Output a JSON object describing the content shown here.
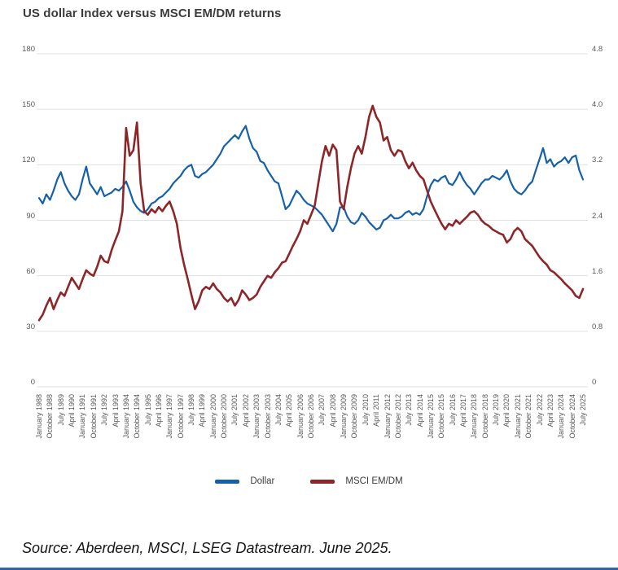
{
  "title": "US dollar Index versus MSCI EM/DM returns",
  "source": "Source: Aberdeen, MSCI, LSEG Datastream. June 2025.",
  "colors": {
    "dollar_line": "#1560a8",
    "msci_line": "#8c2629",
    "gridline": "#e0e0e0",
    "axis_text": "#595959",
    "title_text": "#3b3b3b",
    "bottom_rule": "#2f64ad"
  },
  "legend": [
    {
      "label": "Dollar",
      "color": "#1560a8"
    },
    {
      "label": "MSCI EM/DM",
      "color": "#8c2629"
    }
  ],
  "chart_data": {
    "type": "line",
    "title": "US dollar Index versus MSCI EM/DM returns",
    "grid": true,
    "legend_position": "bottom",
    "x_start": 1988.0,
    "x_step": 0.25,
    "x_end": 2025.5,
    "x_tick_labels": [
      "January 1988",
      "October 1988",
      "July 1989",
      "April 1990",
      "January 1991",
      "October 1991",
      "July 1992",
      "April 1993",
      "January 1994",
      "October 1994",
      "July 1995",
      "April 1996",
      "January 1997",
      "October 1997",
      "July 1998",
      "April 1999",
      "January 2000",
      "October 2000",
      "July 2001",
      "April 2002",
      "January 2003",
      "October 2003",
      "July 2004",
      "April 2005",
      "January 2006",
      "October 2006",
      "July 2007",
      "April 2008",
      "January 2009",
      "October 2009",
      "July 2010",
      "April 2011",
      "January 2012",
      "October 2012",
      "July 2013",
      "April 2014",
      "January 2015",
      "October 2015",
      "July 2016",
      "April 2017",
      "January 2018",
      "October 2018",
      "July 2019",
      "April 2020",
      "January 2021",
      "October 2021",
      "July 2022",
      "April 2023",
      "January 2024",
      "October 2024",
      "July 2025"
    ],
    "left_axis": {
      "max": 180,
      "ticks": [
        0,
        30,
        60,
        90,
        120,
        150,
        180
      ],
      "tick_labels": [
        "0",
        "30",
        "60",
        "90",
        "120",
        "150",
        "180"
      ]
    },
    "right_axis": {
      "max": 4.8,
      "ticks": [
        0,
        0.8,
        1.6,
        2.4,
        3.2,
        4.0,
        4.8
      ],
      "tick_labels": [
        "0",
        "0.8",
        "1.6",
        "2.4",
        "3.2",
        "4.0",
        "4.8"
      ]
    },
    "series": [
      {
        "name": "Dollar",
        "axis": "left",
        "color": "#1560a8",
        "stroke_width": 2.2,
        "values": [
          102,
          99,
          104,
          101,
          106,
          112,
          116,
          110,
          106,
          103,
          101,
          104,
          112,
          119,
          110,
          107,
          104,
          108,
          103,
          104,
          105,
          107,
          106,
          108,
          111,
          106,
          100,
          97,
          95,
          94,
          96,
          99,
          100,
          102,
          103,
          105,
          107,
          110,
          112,
          114,
          117,
          119,
          120,
          114,
          113,
          115,
          116,
          118,
          120,
          123,
          126,
          130,
          132,
          134,
          136,
          134,
          138,
          141,
          134,
          129,
          127,
          122,
          121,
          117,
          114,
          111,
          110,
          103,
          96,
          98,
          102,
          106,
          104,
          101,
          99,
          98,
          97,
          95,
          93,
          90,
          87,
          84,
          88,
          97,
          97,
          92,
          89,
          88,
          90,
          94,
          92,
          89,
          87,
          85,
          86,
          90,
          91,
          93,
          91,
          91,
          92,
          94,
          95,
          93,
          94,
          93,
          96,
          103,
          109,
          112,
          111,
          113,
          114,
          110,
          109,
          112,
          116,
          112,
          109,
          107,
          104,
          107,
          110,
          112,
          112,
          114,
          113,
          112,
          114,
          117,
          111,
          107,
          105,
          104,
          106,
          109,
          111,
          117,
          123,
          129,
          121,
          123,
          119,
          121,
          122,
          124,
          121,
          124,
          125,
          117,
          112
        ]
      },
      {
        "name": "MSCI EM/DM",
        "axis": "right",
        "color": "#8c2629",
        "stroke_width": 2.6,
        "values": [
          0.96,
          1.04,
          1.17,
          1.28,
          1.12,
          1.25,
          1.36,
          1.31,
          1.44,
          1.57,
          1.49,
          1.41,
          1.55,
          1.68,
          1.63,
          1.6,
          1.73,
          1.89,
          1.81,
          1.79,
          1.97,
          2.11,
          2.24,
          2.53,
          3.73,
          3.33,
          3.41,
          3.81,
          2.93,
          2.53,
          2.48,
          2.56,
          2.51,
          2.59,
          2.53,
          2.61,
          2.67,
          2.53,
          2.35,
          2.0,
          1.76,
          1.55,
          1.33,
          1.12,
          1.23,
          1.39,
          1.44,
          1.41,
          1.49,
          1.41,
          1.36,
          1.28,
          1.23,
          1.28,
          1.17,
          1.25,
          1.39,
          1.33,
          1.25,
          1.28,
          1.33,
          1.44,
          1.52,
          1.6,
          1.57,
          1.65,
          1.71,
          1.79,
          1.81,
          1.92,
          2.03,
          2.13,
          2.24,
          2.4,
          2.35,
          2.48,
          2.61,
          2.93,
          3.25,
          3.47,
          3.33,
          3.49,
          3.41,
          2.67,
          2.56,
          2.88,
          3.15,
          3.36,
          3.47,
          3.36,
          3.6,
          3.89,
          4.05,
          3.89,
          3.81,
          3.55,
          3.6,
          3.41,
          3.33,
          3.41,
          3.39,
          3.25,
          3.15,
          3.23,
          3.12,
          3.04,
          2.99,
          2.83,
          2.67,
          2.56,
          2.45,
          2.35,
          2.27,
          2.35,
          2.32,
          2.4,
          2.35,
          2.4,
          2.45,
          2.51,
          2.53,
          2.48,
          2.4,
          2.35,
          2.32,
          2.27,
          2.24,
          2.21,
          2.19,
          2.08,
          2.13,
          2.24,
          2.29,
          2.24,
          2.13,
          2.08,
          2.03,
          1.95,
          1.87,
          1.81,
          1.76,
          1.68,
          1.65,
          1.6,
          1.55,
          1.49,
          1.44,
          1.39,
          1.31,
          1.28,
          1.41
        ]
      }
    ]
  }
}
